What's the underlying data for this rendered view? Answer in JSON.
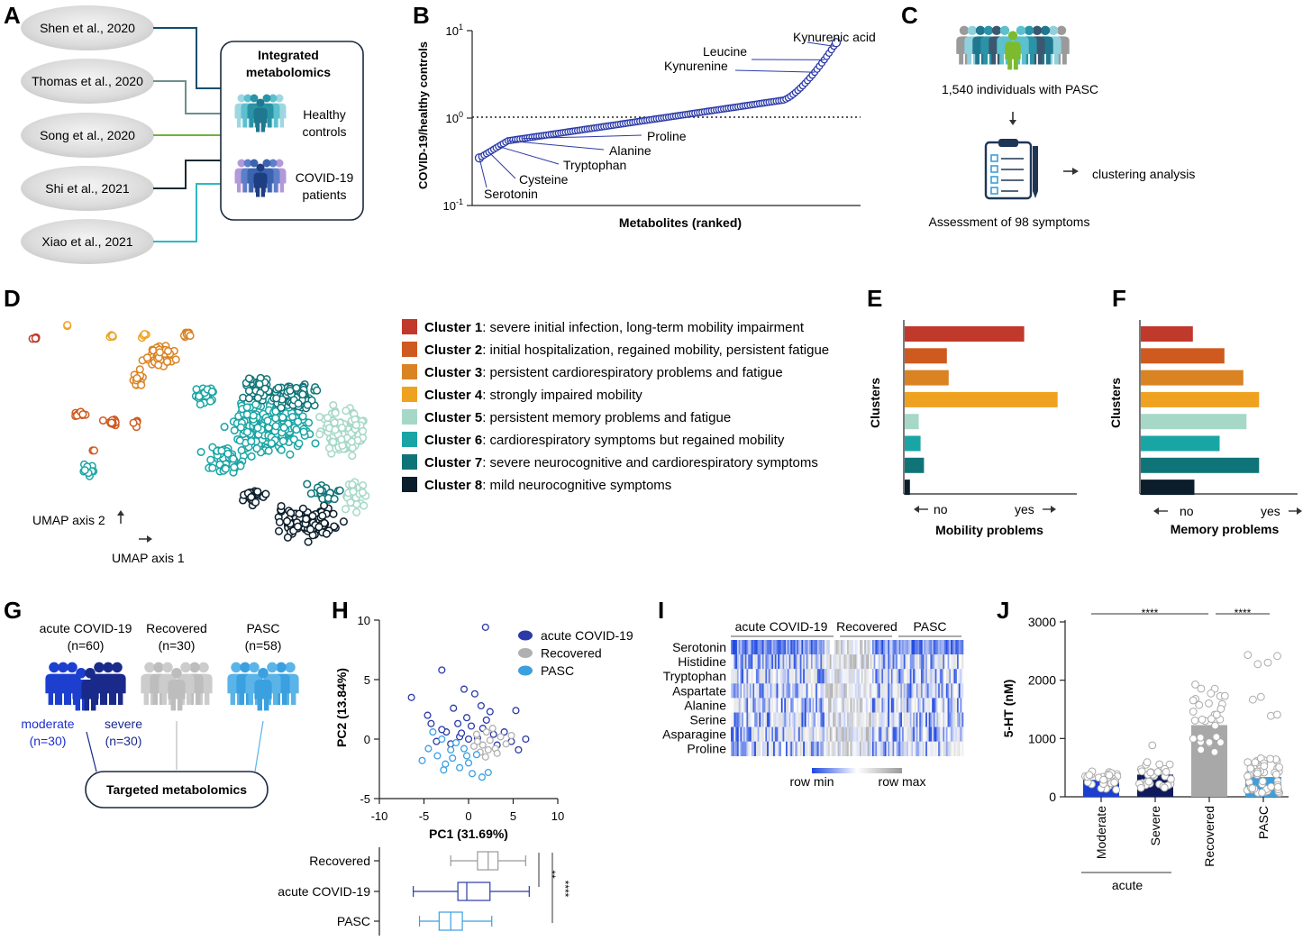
{
  "panels": {
    "A": {
      "letter": "A",
      "studies": [
        "Shen et al., 2020",
        "Thomas et al., 2020",
        "Song et al., 2020",
        "Shi et al., 2021",
        "Xiao et al., 2021"
      ],
      "box_title": [
        "Integrated",
        "metabolomics"
      ],
      "healthy": [
        "Healthy",
        "controls"
      ],
      "covid": [
        "COVID-19",
        "patients"
      ],
      "colors": {
        "shen": "#0e4f6e",
        "thomas": "#6b8f8f",
        "song": "#6fb33b",
        "shi": "#1a2a33",
        "xiao": "#2fb7c5"
      }
    },
    "B": {
      "letter": "B",
      "ylabel": "COVID-19/healthy controls",
      "xlabel": "Metabolites (ranked)",
      "yticks": [
        {
          "base": "10",
          "exp": "1"
        },
        {
          "base": "10",
          "exp": "0"
        },
        {
          "base": "10",
          "exp": "-1"
        }
      ],
      "labels": [
        "Kynurenic acid",
        "Leucine",
        "Kynurenine",
        "Proline",
        "Alanine",
        "Tryptophan",
        "Cysteine",
        "Serotonin"
      ]
    },
    "C": {
      "letter": "C",
      "individuals": "1,540 individuals with PASC",
      "clustering": "clustering analysis",
      "assessment": "Assessment of 98 symptoms"
    },
    "D": {
      "letter": "D",
      "axis2": "UMAP axis 2",
      "axis1": "UMAP axis 1",
      "clusters": [
        {
          "name": "Cluster 1",
          "desc": ": severe initial infection, long-term mobility impairment",
          "color": "#c0392b"
        },
        {
          "name": "Cluster 2",
          "desc": ": initial hospitalization, regained mobility, persistent fatigue",
          "color": "#cf5a1f"
        },
        {
          "name": "Cluster 3",
          "desc": ": persistent cardiorespiratory problems and fatigue",
          "color": "#d98323"
        },
        {
          "name": "Cluster 4",
          "desc": ": strongly impaired mobility",
          "color": "#efa21f"
        },
        {
          "name": "Cluster 5",
          "desc": ": persistent memory problems and fatigue",
          "color": "#a6d8c8"
        },
        {
          "name": "Cluster 6",
          "desc": ": cardiorespiratory symptoms but regained mobility",
          "color": "#1aa5a5"
        },
        {
          "name": "Cluster 7",
          "desc": ": severe neurocognitive and cardiorespiratory symptoms",
          "color": "#0f7478"
        },
        {
          "name": "Cluster 8",
          "desc": ": mild neurocognitive symptoms",
          "color": "#0c1e2b"
        }
      ]
    },
    "E": {
      "letter": "E",
      "ylabel": "Clusters",
      "xlabel": "Mobility problems",
      "no": "no",
      "yes": "yes",
      "values": [
        0.68,
        0.24,
        0.25,
        0.87,
        0.08,
        0.09,
        0.11,
        0.03
      ]
    },
    "F": {
      "letter": "F",
      "ylabel": "Clusters",
      "xlabel": "Memory problems",
      "no": "no",
      "yes": "yes",
      "values": [
        0.33,
        0.53,
        0.65,
        0.75,
        0.67,
        0.5,
        0.75,
        0.34
      ]
    },
    "G": {
      "letter": "G",
      "groups": [
        {
          "name": "acute COVID-19",
          "n": "(n=60)"
        },
        {
          "name": "Recovered",
          "n": "(n=30)"
        },
        {
          "name": "PASC",
          "n": "(n=58)"
        }
      ],
      "moderate": [
        "moderate",
        "(n=30)"
      ],
      "severe": [
        "severe",
        "(n=30)"
      ],
      "box": "Targeted metabolomics"
    },
    "H": {
      "letter": "H",
      "xlabel": "PC1 (31.69%)",
      "ylabel": "PC2 (13.84%)",
      "xticks": [
        "-10",
        "-5",
        "0",
        "5",
        "10"
      ],
      "yticks": [
        "10",
        "5",
        "0",
        "-5"
      ],
      "legend": [
        "acute COVID-19",
        "Recovered",
        "PASC"
      ],
      "box_labels": [
        "Recovered",
        "acute COVID-19",
        "PASC"
      ],
      "sig": [
        "**",
        "****"
      ]
    },
    "I": {
      "letter": "I",
      "groups": [
        "acute COVID-19",
        "Recovered",
        "PASC"
      ],
      "rows": [
        "Serotonin",
        "Histidine",
        "Tryptophan",
        "Aspartate",
        "Alanine",
        "Serine",
        "Asparagine",
        "Proline"
      ],
      "legend_min": "row min",
      "legend_max": "row max"
    },
    "J": {
      "letter": "J",
      "ylabel": "5-HT (nM)",
      "yticks": [
        "3000",
        "2000",
        "1000",
        "0"
      ],
      "categories": [
        "Moderate",
        "Severe",
        "Recovered",
        "PASC"
      ],
      "group_label": "acute",
      "sig": [
        "****",
        "****"
      ]
    }
  },
  "chart_data": [
    {
      "type": "scatter",
      "panel": "B",
      "ylabel": "COVID-19/healthy controls",
      "xlabel": "Metabolites (ranked)",
      "yscale": "log",
      "ylim": [
        0.1,
        10
      ],
      "reference_line": 1,
      "n_points": 150,
      "y_min": 0.35,
      "y_max": 7.3,
      "annotations": [
        {
          "label": "Serotonin",
          "y": 0.35
        },
        {
          "label": "Cysteine",
          "y": 0.45
        },
        {
          "label": "Tryptophan",
          "y": 0.5
        },
        {
          "label": "Alanine",
          "y": 0.55
        },
        {
          "label": "Proline",
          "y": 0.6
        },
        {
          "label": "Kynurenine",
          "y": 2.8
        },
        {
          "label": "Leucine",
          "y": 4.5
        },
        {
          "label": "Kynurenic acid",
          "y": 6.5
        }
      ]
    },
    {
      "type": "bar",
      "panel": "E",
      "orientation": "horizontal",
      "categories": [
        "Cluster 1",
        "Cluster 2",
        "Cluster 3",
        "Cluster 4",
        "Cluster 5",
        "Cluster 6",
        "Cluster 7",
        "Cluster 8"
      ],
      "values": [
        0.68,
        0.24,
        0.25,
        0.87,
        0.08,
        0.09,
        0.11,
        0.03
      ],
      "xlabel": "Mobility problems",
      "ylabel": "Clusters"
    },
    {
      "type": "bar",
      "panel": "F",
      "orientation": "horizontal",
      "categories": [
        "Cluster 1",
        "Cluster 2",
        "Cluster 3",
        "Cluster 4",
        "Cluster 5",
        "Cluster 6",
        "Cluster 7",
        "Cluster 8"
      ],
      "values": [
        0.33,
        0.53,
        0.65,
        0.75,
        0.67,
        0.5,
        0.75,
        0.34
      ],
      "xlabel": "Memory problems",
      "ylabel": "Clusters"
    },
    {
      "type": "scatter",
      "panel": "H",
      "xlabel": "PC1 (31.69%)",
      "ylabel": "PC2 (13.84%)",
      "xlim": [
        -10,
        10
      ],
      "ylim": [
        -5,
        10
      ],
      "series": [
        {
          "name": "acute COVID-19",
          "color": "#2b3aa8",
          "points": [
            [
              -6.4,
              3.5
            ],
            [
              -3,
              5.8
            ],
            [
              -0.5,
              4.2
            ],
            [
              1.9,
              9.4
            ],
            [
              0.7,
              3.8
            ],
            [
              2.4,
              2.3
            ],
            [
              -1.7,
              2.6
            ],
            [
              -0.2,
              1.8
            ],
            [
              5.3,
              2.4
            ],
            [
              -4.2,
              1.3
            ],
            [
              -2.5,
              0.6
            ],
            [
              -1,
              0.2
            ],
            [
              0.3,
              1.1
            ],
            [
              1.6,
              0.9
            ],
            [
              2.8,
              0.4
            ],
            [
              4,
              0.6
            ],
            [
              6.4,
              0
            ],
            [
              5.6,
              -0.9
            ],
            [
              -3.6,
              -0.2
            ],
            [
              -2,
              -0.4
            ],
            [
              -0.8,
              0.5
            ],
            [
              1,
              0.1
            ],
            [
              3.2,
              -0.5
            ],
            [
              -4.6,
              2.0
            ],
            [
              2.0,
              1.6
            ],
            [
              -1.2,
              1.3
            ],
            [
              4.8,
              -0.2
            ],
            [
              -3.0,
              0.8
            ],
            [
              0.0,
              0.0
            ],
            [
              1.4,
              2.8
            ]
          ]
        },
        {
          "name": "Recovered",
          "color": "#b0b0b0",
          "points": [
            [
              1,
              -0.2
            ],
            [
              1.6,
              -0.5
            ],
            [
              2.4,
              -0.1
            ],
            [
              3,
              -0.8
            ],
            [
              2,
              0.6
            ],
            [
              1.3,
              -1.1
            ],
            [
              3.6,
              0.2
            ],
            [
              4.2,
              -0.4
            ],
            [
              2.7,
              0.9
            ],
            [
              0.6,
              -0.6
            ],
            [
              1.9,
              -1.5
            ],
            [
              3.2,
              -1.2
            ],
            [
              4.8,
              0.3
            ],
            [
              2.2,
              -0.9
            ],
            [
              0.9,
              0.4
            ]
          ]
        },
        {
          "name": "PASC",
          "color": "#3aa0e0",
          "points": [
            [
              -5.2,
              -1.8
            ],
            [
              -4.5,
              -0.8
            ],
            [
              -3.5,
              -1.4
            ],
            [
              -2.6,
              -2.1
            ],
            [
              -1.8,
              -1.6
            ],
            [
              -1,
              -2.4
            ],
            [
              0,
              -2
            ],
            [
              0.9,
              -1.3
            ],
            [
              2.2,
              -2.8
            ],
            [
              1.5,
              -3.2
            ],
            [
              -3,
              0
            ],
            [
              -2,
              -0.9
            ],
            [
              -0.5,
              -0.8
            ],
            [
              -4,
              0.6
            ],
            [
              0.4,
              -2.9
            ],
            [
              -1.4,
              -0.3
            ],
            [
              -2.8,
              -2.6
            ],
            [
              -0.2,
              -1.4
            ]
          ]
        }
      ]
    },
    {
      "type": "box",
      "panel": "H",
      "categories": [
        "Recovered",
        "acute COVID-19",
        "PASC"
      ],
      "xlim": [
        -10,
        10
      ],
      "boxes": [
        {
          "name": "Recovered",
          "min": -2,
          "q1": 1,
          "median": 2.2,
          "q3": 3.3,
          "max": 6.4
        },
        {
          "name": "acute COVID-19",
          "min": -6.2,
          "q1": -1.2,
          "median": -0.2,
          "q3": 2.4,
          "max": 6.8
        },
        {
          "name": "PASC",
          "min": -5.5,
          "q1": -3.3,
          "median": -2,
          "q3": -0.7,
          "max": 2.6
        }
      ]
    },
    {
      "type": "heatmap",
      "panel": "I",
      "rows": [
        "Serotonin",
        "Histidine",
        "Tryptophan",
        "Aspartate",
        "Alanine",
        "Serine",
        "Asparagine",
        "Proline"
      ],
      "column_groups": [
        {
          "name": "acute COVID-19",
          "n": 60
        },
        {
          "name": "Recovered",
          "n": 30
        },
        {
          "name": "PASC",
          "n": 58
        }
      ],
      "color_scale": [
        "row min",
        "row max"
      ]
    },
    {
      "type": "bar",
      "panel": "J",
      "categories": [
        "Moderate",
        "Severe",
        "Recovered",
        "PASC"
      ],
      "values": [
        290,
        380,
        1230,
        340
      ],
      "ylabel": "5-HT (nM)",
      "ylim": [
        0,
        3000
      ],
      "colors": [
        "#1c3fcf",
        "#0e1a5c",
        "#a8a8a8",
        "#3aa0e0"
      ],
      "significance": [
        {
          "between": [
            "Moderate",
            "Recovered"
          ],
          "label": "****"
        },
        {
          "between": [
            "Recovered",
            "PASC"
          ],
          "label": "****"
        }
      ]
    }
  ]
}
